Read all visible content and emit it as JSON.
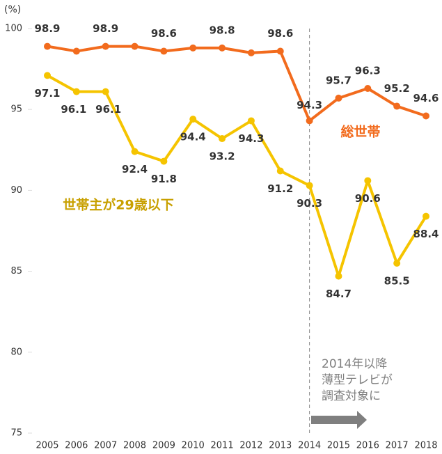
{
  "chart_data": {
    "type": "line",
    "y_unit": "(%)",
    "categories": [
      "2005",
      "2006",
      "2007",
      "2008",
      "2009",
      "2010",
      "2011",
      "2012",
      "2013",
      "2014",
      "2015",
      "2016",
      "2017",
      "2018"
    ],
    "series": [
      {
        "name": "総世帯",
        "color": "#f26b1d",
        "values": [
          98.9,
          98.6,
          98.9,
          98.9,
          98.6,
          98.8,
          98.8,
          98.5,
          98.6,
          94.3,
          95.7,
          96.3,
          95.2,
          94.6
        ],
        "value_labels": [
          "98.9",
          null,
          "98.9",
          null,
          "98.6",
          null,
          "98.8",
          null,
          "98.6",
          "94.3",
          "95.7",
          "96.3",
          "95.2",
          "94.6"
        ]
      },
      {
        "name": "世帯主が29歳以下",
        "color": "#f5c400",
        "values": [
          97.1,
          96.1,
          96.1,
          92.4,
          91.8,
          94.4,
          93.2,
          94.3,
          91.2,
          90.3,
          84.7,
          90.6,
          85.5,
          88.4
        ],
        "value_labels": [
          "97.1",
          "96.1",
          "96.1",
          "92.4",
          "91.8",
          "94.4",
          "93.2",
          "94.3",
          "91.2",
          "90.3",
          "84.7",
          "90.6",
          "85.5",
          "88.4"
        ]
      }
    ],
    "ylim": [
      75,
      100
    ],
    "yticks": [
      75,
      80,
      85,
      90,
      95,
      100
    ],
    "annotation": [
      "2014年以降",
      "薄型テレビが",
      "調査対象に"
    ],
    "annotation_category": 9
  }
}
